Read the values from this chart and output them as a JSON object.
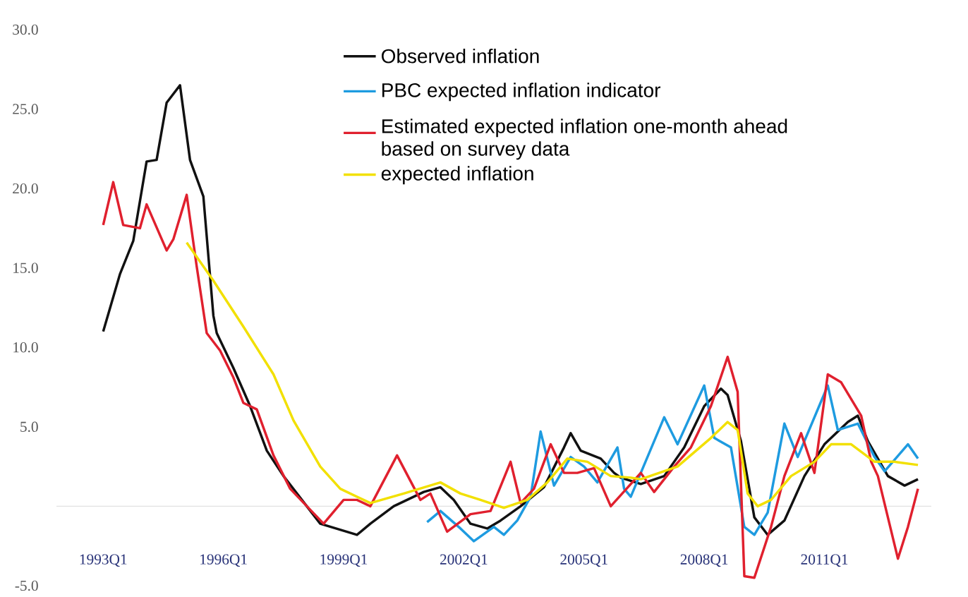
{
  "chart_data": {
    "type": "line",
    "xlim": [
      "1991-11",
      "2013-09"
    ],
    "ylim": [
      -5,
      30
    ],
    "xticks": [
      {
        "value": "1993-01",
        "label": "1993Q1"
      },
      {
        "value": "1996-01",
        "label": "1996Q1"
      },
      {
        "value": "1999-01",
        "label": "1999Q1"
      },
      {
        "value": "2002-01",
        "label": "2002Q1"
      },
      {
        "value": "2005-01",
        "label": "2005Q1"
      },
      {
        "value": "2008-01",
        "label": "2008Q1"
      },
      {
        "value": "2011-01",
        "label": "2011Q1"
      }
    ],
    "yticks": [
      {
        "value": 30,
        "label": "30.0"
      },
      {
        "value": 25,
        "label": "25.0"
      },
      {
        "value": 20,
        "label": "20.0"
      },
      {
        "value": 15,
        "label": "15.0"
      },
      {
        "value": 10,
        "label": "10.0"
      },
      {
        "value": 5,
        "label": "5.0"
      },
      {
        "value": -5,
        "label": "-5.0"
      }
    ],
    "legend": "top right",
    "series": [
      {
        "name": "Observed inflation",
        "color": "#111111",
        "x": [
          "1993-01",
          "1993-06",
          "1993-10",
          "1994-02",
          "1994-05",
          "1994-08",
          "1994-12",
          "1995-03",
          "1995-07",
          "1995-10",
          "1995-11",
          "1996-04",
          "1996-09",
          "1997-02",
          "1997-07",
          "1998-06",
          "1999-05",
          "1999-09",
          "2000-04",
          "2001-01",
          "2001-06",
          "2001-10",
          "2002-03",
          "2002-08",
          "2002-12",
          "2003-06",
          "2004-01",
          "2004-07",
          "2004-09",
          "2004-12",
          "2005-06",
          "2005-10",
          "2005-12",
          "2006-06",
          "2007-01",
          "2007-07",
          "2008-01",
          "2008-06",
          "2008-08",
          "2008-12",
          "2009-04",
          "2009-08",
          "2010-01",
          "2010-07",
          "2011-01",
          "2011-08",
          "2011-11",
          "2012-02",
          "2012-08",
          "2013-01",
          "2013-05"
        ],
        "values": [
          11.0,
          14.6,
          16.7,
          21.7,
          21.8,
          25.4,
          26.5,
          21.8,
          19.5,
          12.0,
          10.9,
          8.7,
          6.3,
          3.5,
          1.9,
          -1.1,
          -1.8,
          -1.1,
          0,
          0.9,
          1.2,
          0.4,
          -1.1,
          -1.4,
          -0.9,
          0,
          1.2,
          3.7,
          4.6,
          3.5,
          3.0,
          2.1,
          1.8,
          1.4,
          1.9,
          3.7,
          6.3,
          7.4,
          7.0,
          4.1,
          -0.7,
          -1.8,
          -0.9,
          1.9,
          3.9,
          5.3,
          5.7,
          4.1,
          1.9,
          1.3,
          1.7
        ]
      },
      {
        "name": "PBC expected inflation indicator",
        "color": "#1e9be0",
        "x": [
          "2001-02",
          "2001-06",
          "2001-12",
          "2002-04",
          "2002-10",
          "2003-01",
          "2003-05",
          "2003-09",
          "2003-12",
          "2004-04",
          "2004-09",
          "2005-01",
          "2005-05",
          "2005-11",
          "2006-01",
          "2006-03",
          "2007-01",
          "2007-05",
          "2008-01",
          "2008-04",
          "2008-09",
          "2009-01",
          "2009-04",
          "2009-08",
          "2010-01",
          "2010-05",
          "2011-02",
          "2011-05",
          "2011-11",
          "2012-04",
          "2012-07",
          "2013-02",
          "2013-05"
        ],
        "values": [
          -1.0,
          -0.3,
          -1.4,
          -2.2,
          -1.3,
          -1.8,
          -0.9,
          0.6,
          4.7,
          1.3,
          3.1,
          2.5,
          1.5,
          3.7,
          1.1,
          0.6,
          5.6,
          3.9,
          7.6,
          4.3,
          3.7,
          -1.3,
          -1.8,
          -0.4,
          5.2,
          3.1,
          7.6,
          4.8,
          5.2,
          3.1,
          2.2,
          3.9,
          3.0
        ]
      },
      {
        "name": "Estimated expected inflation one-month ahead based on survey data",
        "color": "#e0202e",
        "x": [
          "1993-01",
          "1993-04",
          "1993-07",
          "1993-12",
          "1994-02",
          "1994-08",
          "1994-10",
          "1995-02",
          "1995-05",
          "1995-08",
          "1995-12",
          "1996-04",
          "1996-07",
          "1996-11",
          "1997-04",
          "1997-09",
          "1998-07",
          "1999-01",
          "1999-05",
          "1999-09",
          "2000-05",
          "2000-12",
          "2001-03",
          "2001-08",
          "2002-03",
          "2002-09",
          "2003-03",
          "2003-06",
          "2003-10",
          "2004-03",
          "2004-07",
          "2004-11",
          "2005-04",
          "2005-09",
          "2006-06",
          "2006-10",
          "2007-04",
          "2007-09",
          "2008-03",
          "2008-08",
          "2008-11",
          "2009-01",
          "2009-04",
          "2009-09",
          "2010-01",
          "2010-06",
          "2010-10",
          "2011-02",
          "2011-06",
          "2011-12",
          "2012-03",
          "2012-05",
          "2012-11",
          "2013-02",
          "2013-05"
        ],
        "values": [
          17.7,
          20.4,
          17.7,
          17.5,
          19.0,
          16.1,
          16.8,
          19.6,
          15.1,
          10.9,
          9.8,
          8.1,
          6.5,
          6.1,
          3.2,
          1.1,
          -1.1,
          0.4,
          0.4,
          0,
          3.2,
          0.4,
          0.8,
          -1.6,
          -0.5,
          -0.3,
          2.8,
          0.2,
          1.1,
          3.9,
          2.1,
          2.1,
          2.4,
          0,
          2.1,
          0.9,
          2.5,
          3.7,
          6.3,
          9.4,
          7.2,
          -4.4,
          -4.5,
          -1.3,
          1.9,
          4.6,
          2.1,
          8.3,
          7.8,
          5.7,
          2.8,
          1.9,
          -3.3,
          -1.3,
          1.1
        ]
      },
      {
        "name": "expected inflation",
        "color": "#f2e000",
        "x": [
          "1995-02",
          "1995-10",
          "1996-07",
          "1997-04",
          "1997-10",
          "1998-06",
          "1998-12",
          "1999-09",
          "2000-07",
          "2001-06",
          "2001-12",
          "2002-06",
          "2003-01",
          "2003-08",
          "2004-02",
          "2004-08",
          "2005-02",
          "2005-09",
          "2006-03",
          "2006-06",
          "2007-05",
          "2008-03",
          "2008-08",
          "2008-11",
          "2009-02",
          "2009-05",
          "2009-09",
          "2010-03",
          "2010-10",
          "2011-03",
          "2011-09",
          "2012-04",
          "2012-10",
          "2013-05"
        ],
        "values": [
          16.6,
          14.2,
          11.3,
          8.3,
          5.4,
          2.5,
          1.1,
          0.2,
          0.8,
          1.5,
          0.8,
          0.4,
          -0.1,
          0.4,
          1.5,
          3.0,
          2.8,
          1.9,
          1.8,
          1.7,
          2.5,
          4.3,
          5.3,
          4.8,
          0.8,
          0,
          0.4,
          1.9,
          2.8,
          3.9,
          3.9,
          2.8,
          2.8,
          2.6
        ]
      }
    ]
  }
}
